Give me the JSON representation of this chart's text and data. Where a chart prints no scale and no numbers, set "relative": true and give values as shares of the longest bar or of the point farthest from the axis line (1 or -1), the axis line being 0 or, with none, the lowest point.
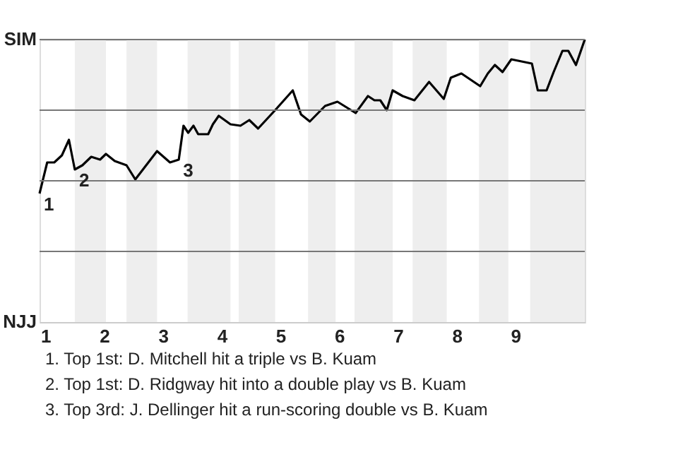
{
  "chart_data": {
    "type": "line",
    "x": [
      0.9,
      1.03,
      1.15,
      1.28,
      1.4,
      1.5,
      1.63,
      1.78,
      1.93,
      2.03,
      2.18,
      2.38,
      2.53,
      2.9,
      3.12,
      3.27,
      3.35,
      3.43,
      3.52,
      3.6,
      3.77,
      3.85,
      3.95,
      4.15,
      4.32,
      4.47,
      4.62,
      4.91,
      5.21,
      5.35,
      5.5,
      5.76,
      5.97,
      6.28,
      6.49,
      6.6,
      6.7,
      6.81,
      6.91,
      7.08,
      7.28,
      7.53,
      7.78,
      7.9,
      8.08,
      8.4,
      8.53,
      8.65,
      8.78,
      8.93,
      9.28,
      9.38,
      9.53,
      9.65,
      9.8,
      9.9,
      10.03,
      10.18
    ],
    "series": [
      {
        "color": "#000000",
        "values": [
          -0.09,
          0.13,
          0.13,
          0.18,
          0.29,
          0.08,
          0.11,
          0.17,
          0.15,
          0.19,
          0.14,
          0.11,
          0.01,
          0.21,
          0.13,
          0.15,
          0.39,
          0.34,
          0.39,
          0.33,
          0.33,
          0.4,
          0.46,
          0.4,
          0.39,
          0.43,
          0.37,
          0.5,
          0.64,
          0.47,
          0.42,
          0.53,
          0.56,
          0.48,
          0.6,
          0.57,
          0.57,
          0.5,
          0.64,
          0.6,
          0.57,
          0.7,
          0.58,
          0.73,
          0.76,
          0.67,
          0.76,
          0.82,
          0.77,
          0.86,
          0.83,
          0.64,
          0.64,
          0.77,
          0.92,
          0.92,
          0.82,
          1
        ]
      }
    ],
    "relative": true,
    "xlim": [
      0.9,
      10.18
    ],
    "xticks": [
      1,
      2,
      3,
      4,
      5,
      6,
      7,
      8,
      9
    ],
    "ref_lines": [
      {
        "axis": "y",
        "value": 1,
        "color": "#777777"
      },
      {
        "axis": "y",
        "value": 0.5,
        "color": "#777777"
      },
      {
        "axis": "y",
        "value": 0,
        "color": "#777777"
      },
      {
        "axis": "y",
        "value": -0.5,
        "color": "#777777"
      }
    ],
    "marker": "none",
    "line_style": "solid",
    "bands": [
      {
        "axis": "x",
        "from": 1.5,
        "to": 2.03,
        "color": "#eeeeee"
      },
      {
        "axis": "x",
        "from": 2.38,
        "to": 2.9,
        "color": "#eeeeee"
      },
      {
        "axis": "x",
        "from": 3.42,
        "to": 4.15,
        "color": "#eeeeee"
      },
      {
        "axis": "x",
        "from": 4.29,
        "to": 4.91,
        "color": "#eeeeee"
      },
      {
        "axis": "x",
        "from": 5.47,
        "to": 5.94,
        "color": "#eeeeee"
      },
      {
        "axis": "x",
        "from": 6.26,
        "to": 6.91,
        "color": "#eeeeee"
      },
      {
        "axis": "x",
        "from": 7.25,
        "to": 7.83,
        "color": "#eeeeee"
      },
      {
        "axis": "x",
        "from": 8.38,
        "to": 8.88,
        "color": "#eeeeee"
      },
      {
        "axis": "x",
        "from": 9.25,
        "to": 10.18,
        "color": "#eeeeee"
      }
    ],
    "annotations": [
      "SIM",
      "NJJ",
      {
        "text": "1",
        "x": 0.9,
        "y": -0.09
      },
      {
        "text": "2",
        "x": 1.5,
        "y": 0.08
      },
      {
        "text": "3",
        "x": 3.27,
        "y": 0.15
      },
      "1. Top 1st: D. Mitchell hit a triple vs B. Kuam",
      "2. Top 1st: D. Ridgway hit into a double play vs B. Kuam",
      "3. Top 3rd: J. Dellinger hit a run-scoring double vs B. Kuam"
    ]
  }
}
